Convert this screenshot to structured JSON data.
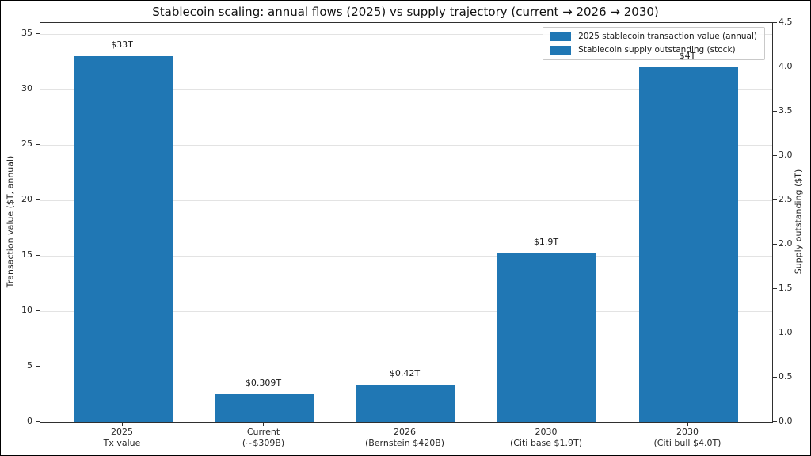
{
  "chart_data": {
    "type": "bar",
    "title": "Stablecoin scaling: annual flows (2025) vs supply trajectory (current → 2026 → 2030)",
    "left_axis": {
      "label": "Transaction value ($T, annual)",
      "ticks": [
        0,
        5,
        10,
        15,
        20,
        25,
        30,
        35
      ],
      "range": [
        0,
        36
      ],
      "grid": true
    },
    "right_axis": {
      "label": "Supply outstanding ($T)",
      "ticks": [
        "0.0",
        "0.5",
        "1.0",
        "1.5",
        "2.0",
        "2.5",
        "3.0",
        "3.5",
        "4.0",
        "4.5"
      ],
      "range": [
        0,
        4.5
      ],
      "grid": false
    },
    "bars": [
      {
        "category_line1": "2025",
        "category_line2": "Tx value",
        "value": 33,
        "value_label": "$33T",
        "axis": "left"
      },
      {
        "category_line1": "Current",
        "category_line2": "(~$309B)",
        "value": 0.309,
        "value_label": "$0.309T",
        "axis": "right"
      },
      {
        "category_line1": "2026",
        "category_line2": "(Bernstein $420B)",
        "value": 0.42,
        "value_label": "$0.42T",
        "axis": "right"
      },
      {
        "category_line1": "2030",
        "category_line2": "(Citi base $1.9T)",
        "value": 1.9,
        "value_label": "$1.9T",
        "axis": "right"
      },
      {
        "category_line1": "2030",
        "category_line2": "(Citi bull $4.0T)",
        "value": 4.0,
        "value_label": "$4T",
        "axis": "right"
      }
    ],
    "legend": {
      "position": "upper right",
      "items": [
        {
          "label": "2025 stablecoin transaction value (annual)",
          "color": "#2077b4"
        },
        {
          "label": "Stablecoin supply outstanding (stock)",
          "color": "#2077b4"
        }
      ]
    },
    "bar_color": "#2077b4",
    "grid_color": "#e3e3e3",
    "spine_color": "#2f2f2f"
  }
}
